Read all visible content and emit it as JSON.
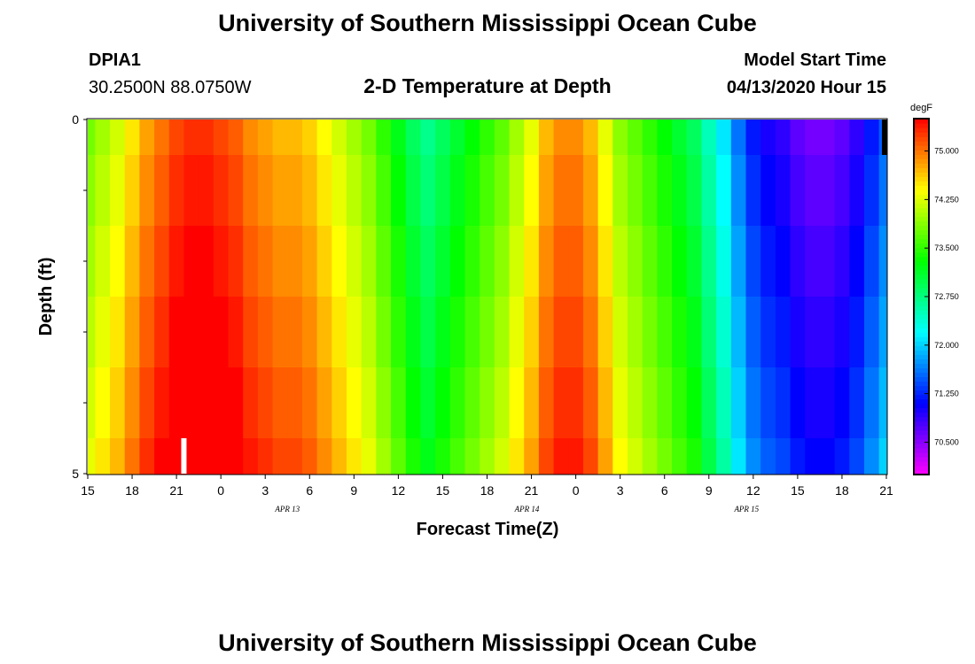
{
  "page": {
    "title_top": "University of Southern Mississippi Ocean Cube",
    "title_bottom": "University of Southern Mississippi Ocean Cube",
    "station_id": "DPIA1",
    "station_coords": "30.2500N 88.0750W",
    "model_start_label": "Model Start Time",
    "model_start_value": "04/13/2020 Hour 15"
  },
  "chart_data": {
    "type": "heatmap",
    "title": "2-D Temperature at Depth",
    "xlabel": "Forecast Time(Z)",
    "ylabel": "Depth (ft)",
    "x_tick_labels": [
      "15",
      "18",
      "21",
      "0",
      "3",
      "6",
      "9",
      "12",
      "15",
      "18",
      "21",
      "0",
      "3",
      "6",
      "9",
      "12",
      "15",
      "18",
      "21"
    ],
    "x_date_labels": [
      {
        "label": "APR 13",
        "hour": 20
      },
      {
        "label": "APR 14",
        "hour": 44
      },
      {
        "label": "APR 15",
        "hour": 66
      }
    ],
    "x_range_hours": [
      0,
      54
    ],
    "y_tick_labels": [
      "0",
      "5"
    ],
    "y_range_ft": [
      0,
      5
    ],
    "depth_rows_ft": [
      0,
      1,
      2,
      3,
      4,
      5
    ],
    "hour_columns": [
      0,
      1,
      2,
      3,
      4,
      5,
      6,
      7,
      8,
      9,
      10,
      11,
      12,
      13,
      14,
      15,
      16,
      17,
      18,
      19,
      20,
      21,
      22,
      23,
      24,
      25,
      26,
      27,
      28,
      29,
      30,
      31,
      32,
      33,
      34,
      35,
      36,
      37,
      38,
      39,
      40,
      41,
      42,
      43,
      44,
      45,
      46,
      47,
      48,
      49,
      50,
      51,
      52,
      53,
      54
    ],
    "base_profile_degF": [
      73.9,
      74.1,
      74.3,
      74.6,
      74.9,
      75.1,
      75.3,
      75.4,
      75.4,
      75.3,
      75.2,
      75.0,
      74.9,
      74.8,
      74.8,
      74.7,
      74.5,
      74.3,
      74.1,
      73.9,
      73.6,
      73.3,
      73.0,
      72.8,
      73.0,
      73.2,
      73.4,
      73.6,
      73.8,
      74.1,
      74.4,
      74.8,
      75.0,
      75.0,
      74.8,
      74.4,
      74.0,
      73.8,
      73.6,
      73.4,
      73.2,
      73.0,
      72.6,
      72.2,
      71.7,
      71.3,
      71.1,
      71.0,
      70.8,
      70.7,
      70.7,
      70.8,
      71.0,
      71.3,
      71.6
    ],
    "row_offsets_degF": [
      -0.1,
      0.0,
      0.1,
      0.2,
      0.3,
      0.4
    ],
    "colorbar": {
      "unit": "degF",
      "tick_labels": [
        "70.500",
        "71.250",
        "72.000",
        "72.750",
        "73.500",
        "74.250",
        "75.000"
      ],
      "range_degF": [
        70.0,
        75.5
      ]
    },
    "markers": [
      {
        "hour": 6.5,
        "depth_top_ft": 4.5,
        "depth_bottom_ft": 5,
        "color": "#ffffff"
      },
      {
        "hour": 54,
        "depth_top_ft": 0,
        "depth_bottom_ft": 0.5,
        "color": "#000000"
      }
    ],
    "grid": false
  }
}
